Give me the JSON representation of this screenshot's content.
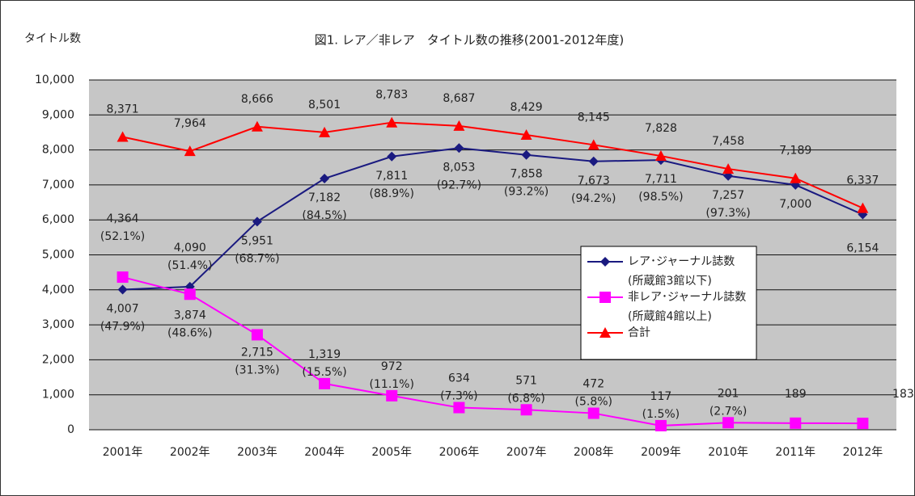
{
  "chart_data": {
    "type": "line",
    "title": "図1. レア／非レア　タイトル数の推移(2001-2012年度)",
    "y_label": "タイトル数",
    "categories": [
      "2001年",
      "2002年",
      "2003年",
      "2004年",
      "2005年",
      "2006年",
      "2007年",
      "2008年",
      "2009年",
      "2010年",
      "2011年",
      "2012年"
    ],
    "series": [
      {
        "name": "レア･ジャーナル誌数",
        "legend_note": "(所蔵館3館以下)",
        "color": "#1a1a80",
        "marker": "diamond",
        "values": [
          4007,
          4090,
          5951,
          7182,
          7811,
          8053,
          7858,
          7673,
          7711,
          7257,
          7000,
          6154
        ],
        "value_labels": [
          "4,007",
          "4,090",
          "5,951",
          "7,182",
          "7,811",
          "8,053",
          "7,858",
          "7,673",
          "7,711",
          "7,257",
          "7,000",
          "6,154"
        ],
        "percent_labels": [
          "(47.9%)",
          "(51.4%)",
          "(68.7%)",
          "(84.5%)",
          "(88.9%)",
          "(92.7%)",
          "(93.2%)",
          "(94.2%)",
          "(98.5%)",
          "(97.3%)",
          null,
          null
        ]
      },
      {
        "name": "非レア･ジャーナル誌数",
        "legend_note": "(所蔵館4館以上)",
        "color": "#ff00ff",
        "marker": "square",
        "values": [
          4364,
          3874,
          2715,
          1319,
          972,
          634,
          571,
          472,
          117,
          201,
          189,
          183
        ],
        "value_labels": [
          "4,364",
          "3,874",
          "2,715",
          "1,319",
          "972",
          "634",
          "571",
          "472",
          "117",
          "201",
          "189",
          "183"
        ],
        "percent_labels": [
          "(52.1%)",
          "(48.6%)",
          "(31.3%)",
          "(15.5%)",
          "(11.1%)",
          "(7.3%)",
          "(6.8%)",
          "(5.8%)",
          "(1.5%)",
          "(2.7%)",
          null,
          null
        ]
      },
      {
        "name": "合計",
        "color": "#ff0000",
        "marker": "triangle",
        "values": [
          8371,
          7964,
          8666,
          8501,
          8783,
          8687,
          8429,
          8145,
          7828,
          7458,
          7189,
          6337
        ],
        "value_labels": [
          "8,371",
          "7,964",
          "8,666",
          "8,501",
          "8,783",
          "8,687",
          "8,429",
          "8,145",
          "7,828",
          "7,458",
          "7,189",
          "6,337"
        ]
      }
    ],
    "ylim": [
      0,
      10000
    ],
    "yticks": [
      0,
      {
        "value": 1000,
        "label": "1,000"
      },
      {
        "value": 2000,
        "label": "2,000"
      },
      {
        "value": 3000,
        "label": "3,000"
      },
      {
        "value": 4000,
        "label": "4,000"
      },
      {
        "value": 5000,
        "label": "5,000"
      },
      {
        "value": 6000,
        "label": "6,000"
      },
      {
        "value": 7000,
        "label": "7,000"
      },
      {
        "value": 8000,
        "label": "8,000"
      },
      {
        "value": 9000,
        "label": "9,000"
      },
      {
        "value": 10000,
        "label": "10,000"
      }
    ],
    "grid": true
  }
}
